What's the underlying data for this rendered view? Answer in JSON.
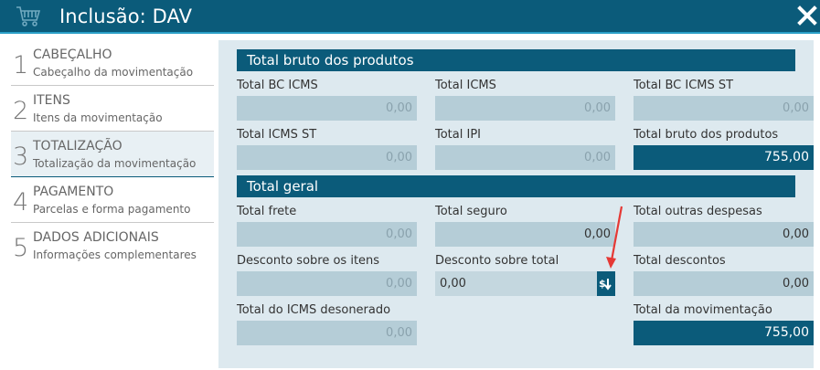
{
  "window": {
    "title": "Inclusão: DAV"
  },
  "colors": {
    "brand": "#0b5b7a",
    "field_bg": "#b5cdd7",
    "panel_bg": "#dde9ef",
    "arrow": "#e53935"
  },
  "sidebar": {
    "steps": [
      {
        "num": "1",
        "name": "CABEÇALHO",
        "desc": "Cabeçalho da movimentação"
      },
      {
        "num": "2",
        "name": "ITENS",
        "desc": "Itens da movimentação"
      },
      {
        "num": "3",
        "name": "TOTALIZAÇÃO",
        "desc": "Totalização da movimentação",
        "active": true
      },
      {
        "num": "4",
        "name": "PAGAMENTO",
        "desc": "Parcelas e forma pagamento"
      },
      {
        "num": "5",
        "name": "DADOS ADICIONAIS",
        "desc": "Informações complementares"
      }
    ]
  },
  "totals_products": {
    "header": "Total bruto dos produtos",
    "total_bc_icms": {
      "label": "Total BC ICMS",
      "value": "0,00"
    },
    "total_icms": {
      "label": "Total ICMS",
      "value": "0,00"
    },
    "total_bc_icms_st": {
      "label": "Total BC ICMS ST",
      "value": "0,00"
    },
    "total_icms_st": {
      "label": "Total ICMS ST",
      "value": "0,00"
    },
    "total_ipi": {
      "label": "Total IPI",
      "value": "0,00"
    },
    "total_bruto": {
      "label": "Total bruto dos produtos",
      "value": "755,00"
    }
  },
  "totals_general": {
    "header": "Total geral",
    "total_frete": {
      "label": "Total frete",
      "value": "0,00"
    },
    "total_seguro": {
      "label": "Total seguro",
      "value": "0,00"
    },
    "total_outras": {
      "label": "Total outras despesas",
      "value": "0,00"
    },
    "desconto_itens": {
      "label": "Desconto sobre os itens",
      "value": "0,00"
    },
    "desconto_total": {
      "label": "Desconto sobre total",
      "value": "0,00",
      "button_icon": "discount-icon"
    },
    "total_descontos": {
      "label": "Total descontos",
      "value": "0,00"
    },
    "icms_desonerado": {
      "label": "Total do ICMS desonerado",
      "value": "0,00"
    },
    "total_movimentacao": {
      "label": "Total da movimentação",
      "value": "755,00"
    }
  }
}
